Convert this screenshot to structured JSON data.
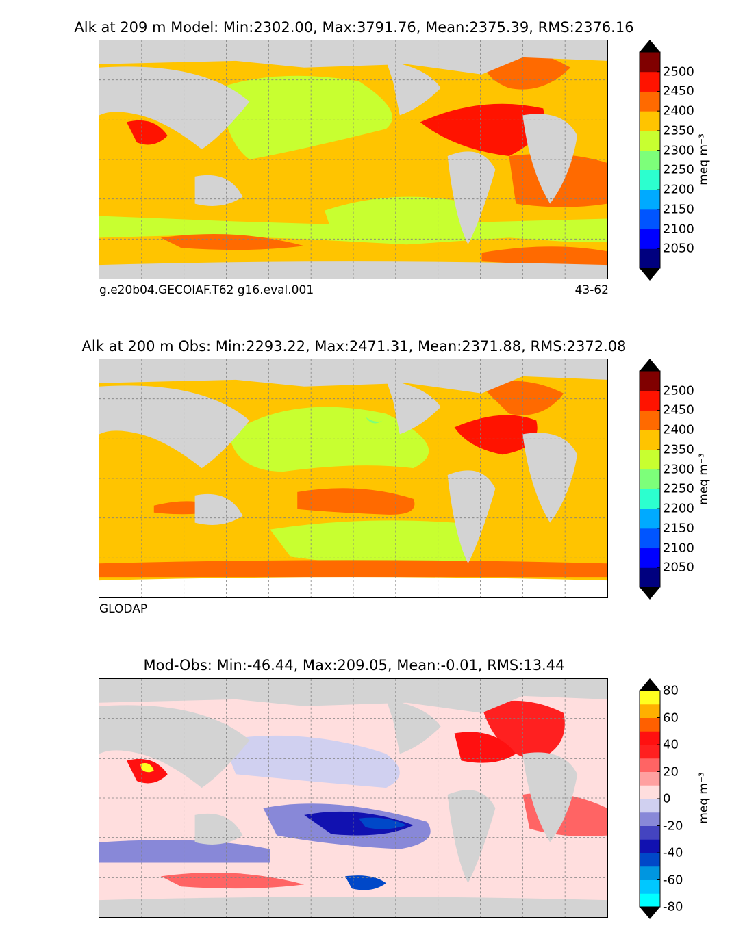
{
  "panels": [
    {
      "title": "Alk at 209 m Model: Min:2302.00, Max:3791.76, Mean:2375.39, RMS:2376.16",
      "case": "g.e20b04.GECOIAF.T62 g16.eval.001",
      "years": "43-62"
    },
    {
      "title": "Alk at 200 m Obs: Min:2293.22, Max:2471.31, Mean:2371.88, RMS:2372.08",
      "source": "GLODAP"
    },
    {
      "title": "Mod-Obs: Min:-46.44, Max:209.05, Mean:-0.01, RMS:13.44"
    }
  ],
  "colorbars": {
    "field": {
      "unit": "meq m$^{-3}$",
      "unit_display": "meq m⁻³",
      "ticks": [
        "2500",
        "2450",
        "2400",
        "2350",
        "2300",
        "2250",
        "2200",
        "2150",
        "2100",
        "2050"
      ],
      "levels": [
        2000,
        2050,
        2100,
        2150,
        2200,
        2250,
        2300,
        2350,
        2400,
        2450,
        2500,
        2550
      ],
      "colors": [
        "#00007f",
        "#0000ff",
        "#0055ff",
        "#00aaff",
        "#2cffcf",
        "#7dff7a",
        "#c8ff30",
        "#ffc400",
        "#ff6a00",
        "#ff1300",
        "#800000"
      ],
      "extend_colors": {
        "low": "#000000",
        "high": "#000000"
      }
    },
    "diff": {
      "unit": "meq m$^{-3}$",
      "unit_display": "meq m⁻³",
      "ticks": [
        "80",
        "60",
        "40",
        "20",
        "0",
        "-20",
        "-40",
        "-60",
        "-80"
      ],
      "levels": [
        -80,
        -70,
        -60,
        -50,
        -40,
        -30,
        -20,
        -10,
        0,
        10,
        20,
        30,
        40,
        50,
        60,
        70,
        80
      ],
      "colors": [
        "#00ffff",
        "#00c8ff",
        "#0096e0",
        "#0048c8",
        "#1111b0",
        "#4444c0",
        "#8888d8",
        "#d0d0f0",
        "#ffdede",
        "#ffa0a0",
        "#ff6464",
        "#ff2020",
        "#ff1010",
        "#ff6000",
        "#ffb000",
        "#ffff20"
      ],
      "extend_colors": {
        "low": "#000000",
        "high": "#000000"
      }
    }
  },
  "colors": {
    "land": "#d3d3d3",
    "coast": "#000000",
    "grid": "#808080",
    "nodata": "#ffffff"
  }
}
